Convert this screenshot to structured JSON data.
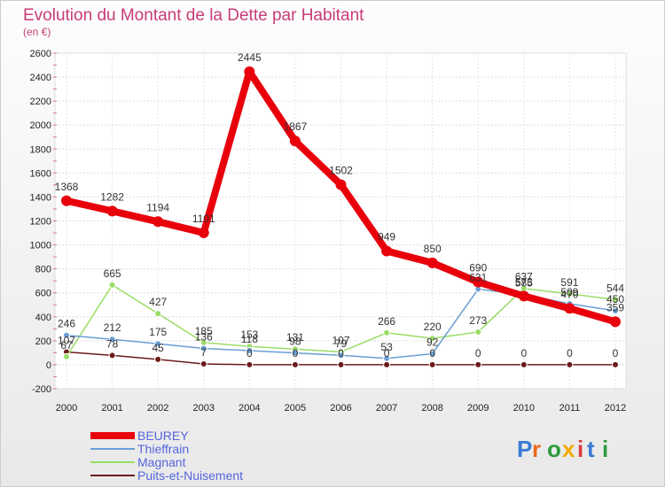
{
  "chart_data": {
    "type": "line",
    "title": "Evolution du Montant de la Dette par Habitant",
    "subtitle": "(en €)",
    "x": [
      "2000",
      "2001",
      "2002",
      "2003",
      "2004",
      "2005",
      "2006",
      "2007",
      "2008",
      "2009",
      "2010",
      "2011",
      "2012"
    ],
    "ylim": [
      -200,
      2600
    ],
    "yticks": [
      -200,
      0,
      200,
      400,
      600,
      800,
      1000,
      1200,
      1400,
      1600,
      1800,
      2000,
      2200,
      2400,
      2600
    ],
    "ytick_labels": [
      "-200",
      "0",
      "200",
      "400",
      "600",
      "800",
      "1000",
      "1200",
      "1400",
      "1600",
      "1800",
      "2000",
      "2200",
      "2400",
      "2600"
    ],
    "grid": true,
    "legend_position": "bottom-left",
    "series": [
      {
        "name": "BEUREY",
        "color": "#e8000b",
        "values": [
          1368,
          1282,
          1194,
          1101,
          2445,
          1867,
          1502,
          949,
          850,
          690,
          573,
          470,
          359
        ],
        "labels": [
          "1368",
          "1282",
          "1194",
          "1101",
          "2445",
          "1867",
          "1502",
          "949",
          "850",
          "690",
          "573",
          "470",
          "359"
        ]
      },
      {
        "name": "Thieffrain",
        "color": "#6a9fd4",
        "values": [
          246,
          212,
          175,
          136,
          118,
          98,
          79,
          53,
          92,
          631,
          585,
          509,
          450
        ],
        "labels": [
          "246",
          "212",
          "175",
          "136",
          "118",
          "98",
          "79",
          "53",
          "92",
          "631",
          "585",
          "509",
          "450"
        ]
      },
      {
        "name": "Magnant",
        "color": "#99dd66",
        "values": [
          67,
          665,
          427,
          185,
          153,
          131,
          107,
          266,
          220,
          273,
          637,
          591,
          544
        ],
        "labels": [
          "67",
          "665",
          "427",
          "185",
          "153",
          "131",
          "107",
          "266",
          "220",
          "273",
          "637",
          "591",
          "544"
        ]
      },
      {
        "name": "Puits-et-Nuisement",
        "color": "#6b1a1a",
        "values": [
          107,
          78,
          45,
          7,
          0,
          0,
          0,
          0,
          0,
          0,
          0,
          0,
          0
        ],
        "labels": [
          "107",
          "78",
          "45",
          "7",
          "0",
          "0",
          "0",
          "0",
          "0",
          "0",
          "0",
          "0",
          "0"
        ]
      }
    ]
  },
  "legend_label_color": "#5566dd",
  "brand": "Proxiti"
}
